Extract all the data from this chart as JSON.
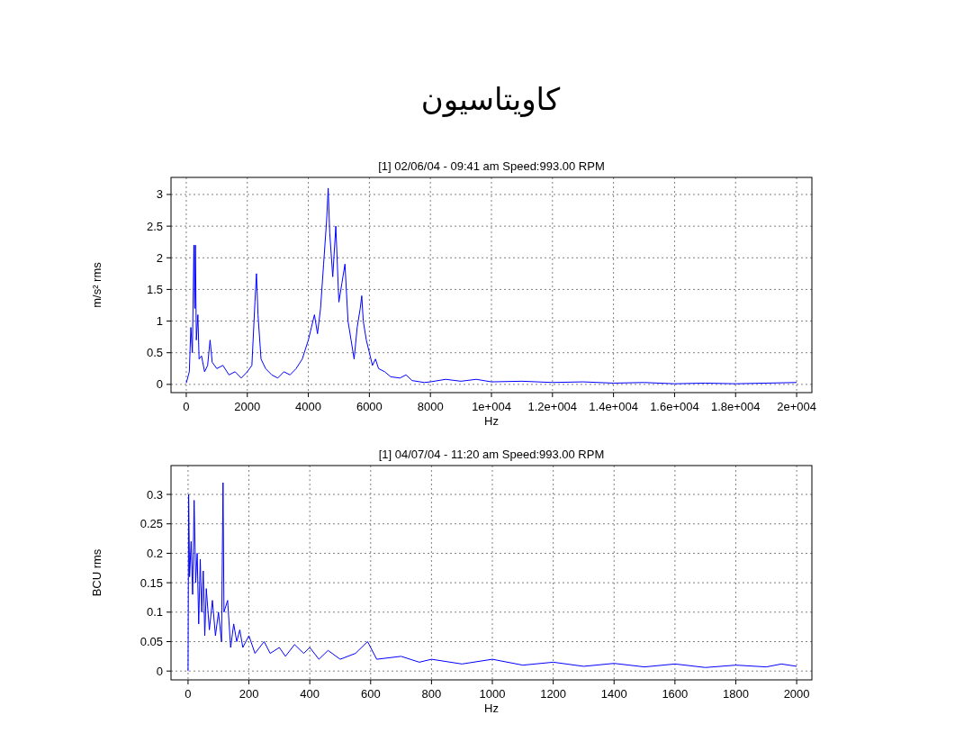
{
  "chart_data": [
    {
      "type": "line",
      "title": "کاویتاسیون",
      "subtitle": "[1] 02/06/04 - 09:41 am Speed:993.00  RPM",
      "xlabel": "Hz",
      "ylabel": "m/s² rms",
      "x": [
        0,
        100,
        150,
        200,
        250,
        280,
        300,
        330,
        380,
        420,
        500,
        600,
        700,
        780,
        850,
        1000,
        1200,
        1400,
        1600,
        1800,
        2000,
        2150,
        2250,
        2300,
        2350,
        2450,
        2600,
        2800,
        3000,
        3200,
        3400,
        3600,
        3800,
        4000,
        4100,
        4200,
        4300,
        4400,
        4500,
        4600,
        4650,
        4700,
        4800,
        4900,
        5000,
        5100,
        5200,
        5300,
        5400,
        5500,
        5600,
        5700,
        5750,
        5800,
        5900,
        6000,
        6100,
        6200,
        6300,
        6500,
        6700,
        7000,
        7200,
        7400,
        7800,
        8000,
        8500,
        9000,
        9500,
        10000,
        11000,
        12000,
        13000,
        14000,
        15000,
        16000,
        17000,
        18000,
        19000,
        20000
      ],
      "series": [
        {
          "color": "#0000ff",
          "values": [
            0.02,
            0.2,
            0.9,
            0.5,
            2.2,
            1.2,
            2.2,
            0.7,
            1.1,
            0.4,
            0.45,
            0.2,
            0.3,
            0.7,
            0.35,
            0.25,
            0.3,
            0.15,
            0.2,
            0.1,
            0.2,
            0.3,
            1.3,
            1.75,
            1.1,
            0.4,
            0.25,
            0.15,
            0.1,
            0.2,
            0.15,
            0.25,
            0.4,
            0.7,
            0.9,
            1.1,
            0.8,
            1.2,
            1.9,
            2.6,
            3.1,
            2.4,
            1.7,
            2.5,
            1.3,
            1.6,
            1.9,
            1.0,
            0.7,
            0.4,
            0.9,
            1.2,
            1.4,
            1.0,
            0.7,
            0.5,
            0.3,
            0.4,
            0.25,
            0.2,
            0.12,
            0.1,
            0.15,
            0.06,
            0.03,
            0.04,
            0.08,
            0.05,
            0.08,
            0.04,
            0.05,
            0.03,
            0.04,
            0.02,
            0.03,
            0.01,
            0.02,
            0.01,
            0.02,
            0.03
          ]
        }
      ],
      "xlim": [
        -500,
        20500
      ],
      "ylim": [
        -0.13,
        3.27
      ],
      "xticks": [
        0,
        2000,
        4000,
        6000,
        8000,
        {
          "value": 10000,
          "label": "1e+004"
        },
        {
          "value": 12000,
          "label": "1.2e+004"
        },
        {
          "value": 14000,
          "label": "1.4e+004"
        },
        {
          "value": 16000,
          "label": "1.6e+004"
        },
        {
          "value": 18000,
          "label": "1.8e+004"
        },
        {
          "value": 20000,
          "label": "2e+004"
        }
      ],
      "yticks": [
        0,
        0.5,
        1,
        1.5,
        2,
        2.5,
        3
      ],
      "grid": true,
      "marker": "none",
      "line_style": "solid"
    },
    {
      "type": "line",
      "title": "[1] 04/07/04 - 11:20 am Speed:993.00  RPM",
      "xlabel": "Hz",
      "ylabel": "BCU  rms",
      "x": [
        0,
        2,
        5,
        10,
        15,
        20,
        25,
        30,
        35,
        40,
        45,
        50,
        55,
        60,
        70,
        80,
        90,
        100,
        110,
        115,
        118,
        130,
        140,
        150,
        160,
        170,
        180,
        200,
        220,
        250,
        270,
        300,
        320,
        350,
        380,
        400,
        430,
        460,
        500,
        550,
        590,
        620,
        700,
        760,
        800,
        900,
        1000,
        1100,
        1200,
        1300,
        1400,
        1500,
        1600,
        1700,
        1800,
        1900,
        1950,
        2000
      ],
      "series": [
        {
          "color": "#0000ff",
          "values": [
            0,
            0.3,
            0.16,
            0.22,
            0.13,
            0.29,
            0.15,
            0.2,
            0.08,
            0.19,
            0.1,
            0.17,
            0.06,
            0.14,
            0.07,
            0.12,
            0.06,
            0.1,
            0.05,
            0.32,
            0.1,
            0.12,
            0.04,
            0.08,
            0.05,
            0.07,
            0.04,
            0.06,
            0.03,
            0.05,
            0.03,
            0.04,
            0.025,
            0.045,
            0.03,
            0.04,
            0.02,
            0.035,
            0.02,
            0.03,
            0.05,
            0.02,
            0.025,
            0.015,
            0.02,
            0.012,
            0.02,
            0.01,
            0.015,
            0.008,
            0.013,
            0.007,
            0.012,
            0.006,
            0.01,
            0.007,
            0.012,
            0.008
          ]
        }
      ],
      "xlim": [
        -56,
        2050
      ],
      "ylim": [
        -0.015,
        0.349
      ],
      "xticks": [
        0,
        200,
        400,
        600,
        800,
        1000,
        1200,
        1400,
        1600,
        1800,
        2000
      ],
      "yticks": [
        0,
        0.05,
        0.1,
        0.15,
        0.2,
        0.25,
        0.3
      ],
      "grid": true,
      "marker": "none",
      "line_style": "solid"
    }
  ]
}
